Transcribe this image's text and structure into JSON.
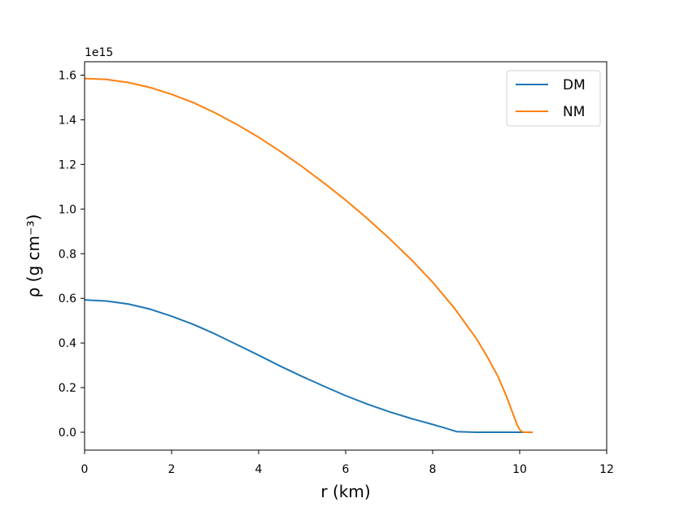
{
  "chart_data": {
    "type": "line",
    "title": "",
    "xlabel": "r (km)",
    "ylabel": "ρ (g cm⁻³)",
    "y_offset_label": "1e15",
    "xlim": [
      0,
      12
    ],
    "ylim": [
      -0.08,
      1.66
    ],
    "x_ticks": [
      0,
      2,
      4,
      6,
      8,
      10,
      12
    ],
    "x_tick_labels": [
      "0",
      "2",
      "4",
      "6",
      "8",
      "10",
      "12"
    ],
    "y_ticks": [
      0.0,
      0.2,
      0.4,
      0.6,
      0.8,
      1.0,
      1.2,
      1.4,
      1.6
    ],
    "y_tick_labels": [
      "0.0",
      "0.2",
      "0.4",
      "0.6",
      "0.8",
      "1.0",
      "1.2",
      "1.4",
      "1.6"
    ],
    "grid": false,
    "legend": {
      "position": "top-right",
      "entries": [
        "DM",
        "NM"
      ]
    },
    "series": [
      {
        "name": "DM",
        "color": "#1f77b4",
        "x": [
          0,
          0.5,
          1,
          1.5,
          2,
          2.5,
          3,
          3.5,
          4,
          4.5,
          5,
          5.5,
          6,
          6.5,
          7,
          7.5,
          8,
          8.3,
          8.55,
          9,
          9.5,
          10,
          10.3
        ],
        "y": [
          0.593,
          0.588,
          0.575,
          0.552,
          0.52,
          0.483,
          0.44,
          0.393,
          0.345,
          0.296,
          0.25,
          0.206,
          0.164,
          0.126,
          0.092,
          0.062,
          0.035,
          0.018,
          0.003,
          0.0,
          0.0,
          0.0,
          0.0
        ]
      },
      {
        "name": "NM",
        "color": "#ff7f0e",
        "x": [
          0,
          0.5,
          1,
          1.5,
          2,
          2.5,
          3,
          3.5,
          4,
          4.5,
          5,
          5.5,
          6,
          6.5,
          7,
          7.5,
          8,
          8.5,
          9,
          9.25,
          9.5,
          9.7,
          9.85,
          9.95,
          10.0,
          10.05,
          10.1,
          10.3
        ],
        "y": [
          1.585,
          1.581,
          1.567,
          1.545,
          1.514,
          1.477,
          1.431,
          1.379,
          1.322,
          1.258,
          1.19,
          1.117,
          1.04,
          0.957,
          0.869,
          0.775,
          0.672,
          0.556,
          0.421,
          0.34,
          0.25,
          0.16,
          0.08,
          0.03,
          0.012,
          0.003,
          0.0,
          0.0
        ]
      }
    ]
  }
}
